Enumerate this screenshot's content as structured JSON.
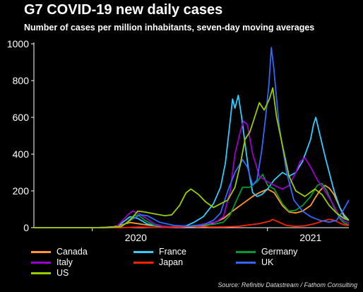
{
  "header": {
    "title": "G7 COVID-19 new daily cases",
    "subtitle": "Number of cases per million inhabitants, seven-day moving averages"
  },
  "source": "Source: Refinitiv Datastream / Fathom Consulting",
  "chart_data": {
    "type": "line",
    "title": "G7 COVID-19 new daily cases",
    "subtitle": "Number of cases per million inhabitants, seven-day moving averages",
    "xlabel": "",
    "ylabel": "",
    "xlim": [
      "2019-09-01",
      "2021-06-20"
    ],
    "ylim": [
      0,
      1000
    ],
    "yticks": [
      0,
      200,
      400,
      600,
      800,
      1000
    ],
    "xtick_labels": [
      {
        "date": "2020-04-01",
        "label": "2020"
      },
      {
        "date": "2021-04-01",
        "label": "2021"
      }
    ],
    "grid": false,
    "legend": "bottom",
    "series": [
      {
        "name": "Canada",
        "color": "#ff9933",
        "points": [
          [
            "2019-09-01",
            0
          ],
          [
            "2020-01-10",
            0
          ],
          [
            "2020-02-15",
            5
          ],
          [
            "2020-03-01",
            15
          ],
          [
            "2020-03-20",
            28
          ],
          [
            "2020-04-10",
            20
          ],
          [
            "2020-05-01",
            12
          ],
          [
            "2020-06-01",
            5
          ],
          [
            "2020-07-01",
            4
          ],
          [
            "2020-08-01",
            6
          ],
          [
            "2020-09-01",
            15
          ],
          [
            "2020-10-01",
            50
          ],
          [
            "2020-10-20",
            90
          ],
          [
            "2020-11-10",
            130
          ],
          [
            "2020-12-01",
            170
          ],
          [
            "2020-12-15",
            190
          ],
          [
            "2021-01-01",
            210
          ],
          [
            "2021-01-15",
            190
          ],
          [
            "2021-02-01",
            120
          ],
          [
            "2021-02-15",
            85
          ],
          [
            "2021-03-01",
            80
          ],
          [
            "2021-03-15",
            90
          ],
          [
            "2021-04-01",
            120
          ],
          [
            "2021-04-10",
            160
          ],
          [
            "2021-04-20",
            200
          ],
          [
            "2021-05-01",
            230
          ],
          [
            "2021-05-10",
            215
          ],
          [
            "2021-05-20",
            180
          ],
          [
            "2021-06-01",
            110
          ],
          [
            "2021-06-10",
            70
          ],
          [
            "2021-06-20",
            40
          ]
        ]
      },
      {
        "name": "France",
        "color": "#33ccff",
        "points": [
          [
            "2019-09-01",
            0
          ],
          [
            "2020-01-15",
            0
          ],
          [
            "2020-02-20",
            5
          ],
          [
            "2020-03-05",
            30
          ],
          [
            "2020-03-20",
            60
          ],
          [
            "2020-04-05",
            50
          ],
          [
            "2020-04-25",
            20
          ],
          [
            "2020-05-20",
            5
          ],
          [
            "2020-06-20",
            3
          ],
          [
            "2020-07-15",
            10
          ],
          [
            "2020-08-01",
            30
          ],
          [
            "2020-08-20",
            60
          ],
          [
            "2020-09-10",
            130
          ],
          [
            "2020-09-25",
            220
          ],
          [
            "2020-10-05",
            350
          ],
          [
            "2020-10-15",
            580
          ],
          [
            "2020-10-20",
            700
          ],
          [
            "2020-10-25",
            650
          ],
          [
            "2020-11-01",
            720
          ],
          [
            "2020-11-08",
            600
          ],
          [
            "2020-11-15",
            460
          ],
          [
            "2020-11-22",
            320
          ],
          [
            "2020-12-01",
            190
          ],
          [
            "2020-12-10",
            170
          ],
          [
            "2020-12-20",
            180
          ],
          [
            "2021-01-01",
            210
          ],
          [
            "2021-01-15",
            260
          ],
          [
            "2021-02-01",
            300
          ],
          [
            "2021-02-15",
            280
          ],
          [
            "2021-03-01",
            300
          ],
          [
            "2021-03-15",
            360
          ],
          [
            "2021-04-01",
            480
          ],
          [
            "2021-04-07",
            560
          ],
          [
            "2021-04-12",
            600
          ],
          [
            "2021-04-20",
            510
          ],
          [
            "2021-05-01",
            390
          ],
          [
            "2021-05-10",
            300
          ],
          [
            "2021-05-20",
            200
          ],
          [
            "2021-06-01",
            110
          ],
          [
            "2021-06-10",
            60
          ],
          [
            "2021-06-20",
            40
          ]
        ]
      },
      {
        "name": "Germany",
        "color": "#009933",
        "points": [
          [
            "2019-09-01",
            0
          ],
          [
            "2020-01-15",
            0
          ],
          [
            "2020-02-25",
            3
          ],
          [
            "2020-03-10",
            20
          ],
          [
            "2020-03-25",
            60
          ],
          [
            "2020-04-05",
            70
          ],
          [
            "2020-04-20",
            40
          ],
          [
            "2020-05-10",
            12
          ],
          [
            "2020-06-10",
            5
          ],
          [
            "2020-07-10",
            6
          ],
          [
            "2020-08-10",
            14
          ],
          [
            "2020-09-10",
            18
          ],
          [
            "2020-10-01",
            30
          ],
          [
            "2020-10-15",
            70
          ],
          [
            "2020-11-01",
            170
          ],
          [
            "2020-11-10",
            220
          ],
          [
            "2020-11-25",
            220
          ],
          [
            "2020-12-10",
            250
          ],
          [
            "2020-12-22",
            290
          ],
          [
            "2021-01-01",
            230
          ],
          [
            "2021-01-15",
            210
          ],
          [
            "2021-02-01",
            130
          ],
          [
            "2021-02-15",
            90
          ],
          [
            "2021-03-01",
            95
          ],
          [
            "2021-03-15",
            120
          ],
          [
            "2021-04-01",
            170
          ],
          [
            "2021-04-15",
            230
          ],
          [
            "2021-04-25",
            240
          ],
          [
            "2021-05-05",
            200
          ],
          [
            "2021-05-20",
            110
          ],
          [
            "2021-06-01",
            50
          ],
          [
            "2021-06-10",
            25
          ],
          [
            "2021-06-20",
            15
          ]
        ]
      },
      {
        "name": "Italy",
        "color": "#9900cc",
        "points": [
          [
            "2019-09-01",
            0
          ],
          [
            "2020-01-15",
            0
          ],
          [
            "2020-02-20",
            3
          ],
          [
            "2020-03-01",
            30
          ],
          [
            "2020-03-15",
            70
          ],
          [
            "2020-03-25",
            90
          ],
          [
            "2020-04-05",
            80
          ],
          [
            "2020-04-20",
            55
          ],
          [
            "2020-05-10",
            20
          ],
          [
            "2020-06-01",
            5
          ],
          [
            "2020-07-01",
            3
          ],
          [
            "2020-08-01",
            8
          ],
          [
            "2020-08-20",
            20
          ],
          [
            "2020-09-15",
            30
          ],
          [
            "2020-10-01",
            60
          ],
          [
            "2020-10-15",
            200
          ],
          [
            "2020-10-25",
            400
          ],
          [
            "2020-11-05",
            520
          ],
          [
            "2020-11-12",
            580
          ],
          [
            "2020-11-20",
            560
          ],
          [
            "2020-12-01",
            400
          ],
          [
            "2020-12-15",
            280
          ],
          [
            "2021-01-01",
            250
          ],
          [
            "2021-01-15",
            230
          ],
          [
            "2021-02-01",
            210
          ],
          [
            "2021-02-15",
            230
          ],
          [
            "2021-03-01",
            300
          ],
          [
            "2021-03-10",
            360
          ],
          [
            "2021-03-20",
            380
          ],
          [
            "2021-04-01",
            330
          ],
          [
            "2021-04-15",
            260
          ],
          [
            "2021-05-01",
            200
          ],
          [
            "2021-05-15",
            140
          ],
          [
            "2021-06-01",
            60
          ],
          [
            "2021-06-10",
            35
          ],
          [
            "2021-06-20",
            25
          ]
        ]
      },
      {
        "name": "Japan",
        "color": "#ff2200",
        "points": [
          [
            "2019-09-01",
            0
          ],
          [
            "2020-03-01",
            0
          ],
          [
            "2020-04-10",
            4
          ],
          [
            "2020-05-01",
            2
          ],
          [
            "2020-06-01",
            1
          ],
          [
            "2020-07-20",
            6
          ],
          [
            "2020-08-05",
            8
          ],
          [
            "2020-09-01",
            4
          ],
          [
            "2020-10-01",
            4
          ],
          [
            "2020-11-01",
            7
          ],
          [
            "2020-11-20",
            14
          ],
          [
            "2020-12-15",
            22
          ],
          [
            "2021-01-05",
            35
          ],
          [
            "2021-01-12",
            45
          ],
          [
            "2021-01-25",
            30
          ],
          [
            "2021-02-10",
            12
          ],
          [
            "2021-03-01",
            7
          ],
          [
            "2021-03-20",
            10
          ],
          [
            "2021-04-10",
            22
          ],
          [
            "2021-04-25",
            35
          ],
          [
            "2021-05-10",
            45
          ],
          [
            "2021-05-20",
            40
          ],
          [
            "2021-06-01",
            25
          ],
          [
            "2021-06-10",
            15
          ],
          [
            "2021-06-20",
            12
          ]
        ]
      },
      {
        "name": "UK",
        "color": "#3366ff",
        "points": [
          [
            "2019-09-01",
            0
          ],
          [
            "2020-01-20",
            0
          ],
          [
            "2020-03-01",
            5
          ],
          [
            "2020-03-20",
            40
          ],
          [
            "2020-04-10",
            70
          ],
          [
            "2020-04-25",
            65
          ],
          [
            "2020-05-20",
            30
          ],
          [
            "2020-06-20",
            12
          ],
          [
            "2020-07-20",
            8
          ],
          [
            "2020-08-20",
            15
          ],
          [
            "2020-09-10",
            40
          ],
          [
            "2020-09-25",
            80
          ],
          [
            "2020-10-10",
            200
          ],
          [
            "2020-10-25",
            300
          ],
          [
            "2020-11-10",
            370
          ],
          [
            "2020-11-20",
            330
          ],
          [
            "2020-12-01",
            230
          ],
          [
            "2020-12-10",
            260
          ],
          [
            "2020-12-20",
            420
          ],
          [
            "2020-12-28",
            600
          ],
          [
            "2021-01-04",
            780
          ],
          [
            "2021-01-09",
            980
          ],
          [
            "2021-01-14",
            870
          ],
          [
            "2021-01-25",
            560
          ],
          [
            "2021-02-10",
            300
          ],
          [
            "2021-02-25",
            150
          ],
          [
            "2021-03-15",
            90
          ],
          [
            "2021-04-01",
            60
          ],
          [
            "2021-04-20",
            40
          ],
          [
            "2021-05-10",
            30
          ],
          [
            "2021-05-25",
            40
          ],
          [
            "2021-06-05",
            80
          ],
          [
            "2021-06-20",
            150
          ]
        ]
      },
      {
        "name": "US",
        "color": "#99cc00",
        "points": [
          [
            "2019-09-01",
            0
          ],
          [
            "2020-01-25",
            0
          ],
          [
            "2020-03-01",
            5
          ],
          [
            "2020-03-20",
            40
          ],
          [
            "2020-04-05",
            90
          ],
          [
            "2020-04-20",
            85
          ],
          [
            "2020-05-10",
            75
          ],
          [
            "2020-06-01",
            65
          ],
          [
            "2020-06-15",
            70
          ],
          [
            "2020-07-01",
            120
          ],
          [
            "2020-07-15",
            190
          ],
          [
            "2020-07-25",
            210
          ],
          [
            "2020-08-10",
            180
          ],
          [
            "2020-08-25",
            140
          ],
          [
            "2020-09-10",
            110
          ],
          [
            "2020-09-25",
            130
          ],
          [
            "2020-10-10",
            150
          ],
          [
            "2020-10-25",
            220
          ],
          [
            "2020-11-05",
            340
          ],
          [
            "2020-11-15",
            480
          ],
          [
            "2020-11-25",
            520
          ],
          [
            "2020-12-05",
            600
          ],
          [
            "2020-12-15",
            680
          ],
          [
            "2020-12-25",
            640
          ],
          [
            "2021-01-05",
            700
          ],
          [
            "2021-01-12",
            760
          ],
          [
            "2021-01-20",
            600
          ],
          [
            "2021-02-01",
            450
          ],
          [
            "2021-02-15",
            280
          ],
          [
            "2021-03-01",
            200
          ],
          [
            "2021-03-20",
            170
          ],
          [
            "2021-04-10",
            210
          ],
          [
            "2021-04-25",
            180
          ],
          [
            "2021-05-10",
            120
          ],
          [
            "2021-05-25",
            80
          ],
          [
            "2021-06-10",
            50
          ],
          [
            "2021-06-20",
            40
          ]
        ]
      }
    ]
  }
}
